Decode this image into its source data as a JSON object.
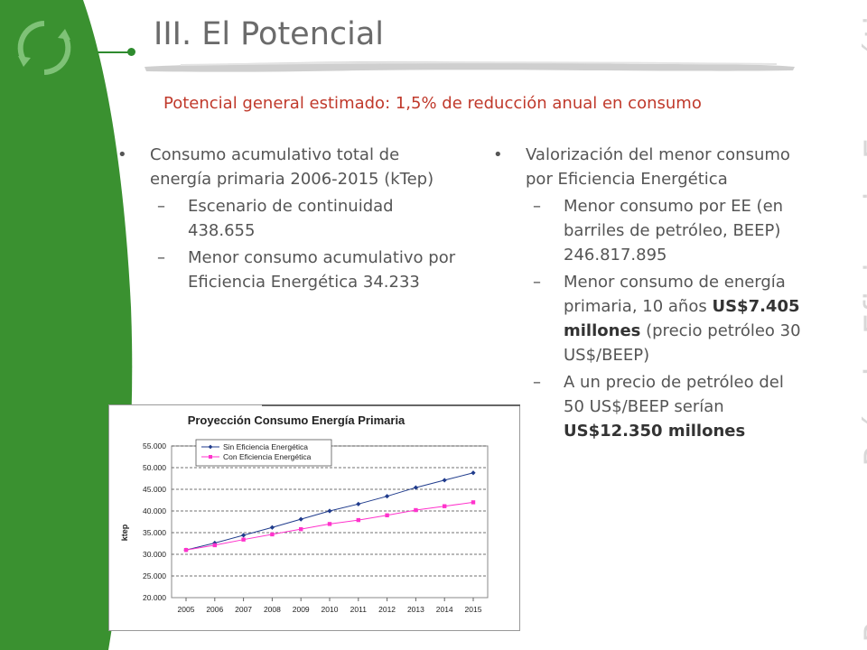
{
  "slide": {
    "title": "III. El Potencial",
    "side_title": "Programa País de Eficiencia Energética",
    "subtitle": "Potencial general estimado: 1,5% de reducción anual en consumo"
  },
  "colors": {
    "green": "#3a9130",
    "title_gray": "#6b6b6b",
    "subtitle_red": "#c0392b",
    "series1": "#1f3b8c",
    "series2": "#ff33cc"
  },
  "left_column": {
    "bullet": "Consumo acumulativo total de energía primaria 2006-2015 (kTep)",
    "items": [
      {
        "dash": "–",
        "text": "Escenario de continuidad 438.655"
      },
      {
        "dash": "–",
        "text": "Menor consumo acumulativo por Eficiencia Energética 34.233"
      }
    ]
  },
  "right_column": {
    "bullet": "Valorización del menor consumo por Eficiencia Energética",
    "items": [
      {
        "dash": "–",
        "text": "Menor consumo por EE (en barriles de petróleo, BEEP) 246.817.895"
      },
      {
        "dash": "–",
        "text_a": "Menor consumo de energía primaria, 10 años",
        "bold": "US$7.405 millones",
        "text_b": "(precio petróleo 30 US$/BEEP)"
      },
      {
        "dash": "–",
        "text_a": "A un precio de petróleo del 50 US$/BEEP serían",
        "bold": "US$12.350 millones"
      }
    ]
  },
  "chart_data": {
    "type": "line",
    "title": "Proyección Consumo Energía Primaria",
    "ylabel": "ktep",
    "xlabel": "",
    "x": [
      "2005",
      "2006",
      "2007",
      "2008",
      "2009",
      "2010",
      "2011",
      "2012",
      "2013",
      "2014",
      "2015"
    ],
    "ylim": [
      20000,
      55000
    ],
    "yticks": [
      "20.000",
      "25.000",
      "30.000",
      "35.000",
      "40.000",
      "45.000",
      "50.000",
      "55.000"
    ],
    "ytick_values": [
      20000,
      25000,
      30000,
      35000,
      40000,
      45000,
      50000,
      55000
    ],
    "grid": true,
    "legend_position": "top-left",
    "series": [
      {
        "name": "Sin Eficiencia Energética",
        "color": "#1f3b8c",
        "marker": "diamond",
        "values": [
          31000,
          32600,
          34400,
          36200,
          38100,
          40000,
          41600,
          43400,
          45400,
          47100,
          48800
        ]
      },
      {
        "name": "Con Eficiencia Energética",
        "color": "#ff33cc",
        "marker": "square",
        "values": [
          31000,
          32100,
          33400,
          34600,
          35800,
          37000,
          37900,
          39000,
          40200,
          41100,
          42000
        ]
      }
    ]
  }
}
